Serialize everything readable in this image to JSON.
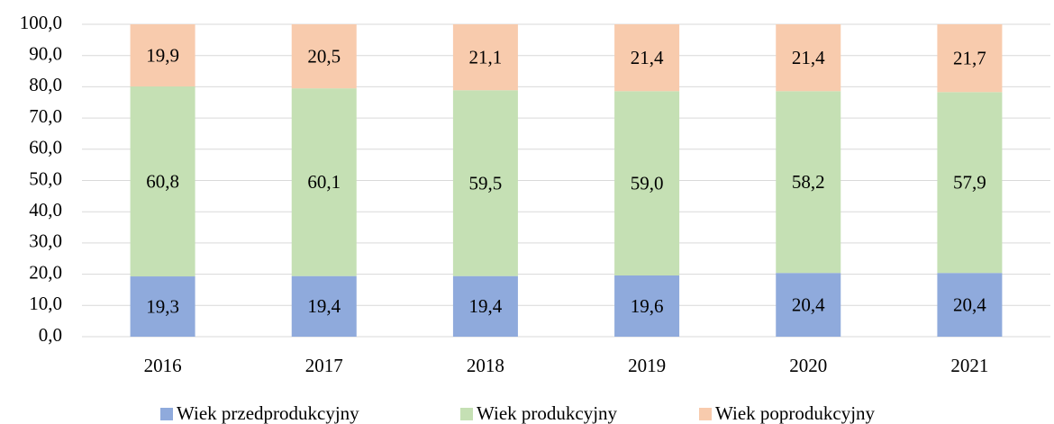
{
  "chart_data": {
    "type": "stacked_bar",
    "categories": [
      "2016",
      "2017",
      "2018",
      "2019",
      "2020",
      "2021"
    ],
    "series": [
      {
        "name": "Wiek przedprodukcyjny",
        "color": "#8faadc",
        "values": [
          19.3,
          19.4,
          19.4,
          19.6,
          20.4,
          20.4
        ],
        "value_labels": [
          "19,3",
          "19,4",
          "19,4",
          "19,6",
          "20,4",
          "20,4"
        ]
      },
      {
        "name": "Wiek produkcyjny",
        "color": "#c5e0b4",
        "values": [
          60.8,
          60.1,
          59.5,
          59.0,
          58.2,
          57.9
        ],
        "value_labels": [
          "60,8",
          "60,1",
          "59,5",
          "59,0",
          "58,2",
          "57,9"
        ]
      },
      {
        "name": "Wiek poprodukcyjny",
        "color": "#f8cbad",
        "values": [
          19.9,
          20.5,
          21.1,
          21.4,
          21.4,
          21.7
        ],
        "value_labels": [
          "19,9",
          "20,5",
          "21,1",
          "21,4",
          "21,4",
          "21,7"
        ]
      }
    ],
    "ylim": [
      0,
      100
    ],
    "yticks": [
      {
        "value": 0,
        "label": "0,0"
      },
      {
        "value": 10,
        "label": "10,0"
      },
      {
        "value": 20,
        "label": "20,0"
      },
      {
        "value": 30,
        "label": "30,0"
      },
      {
        "value": 40,
        "label": "40,0"
      },
      {
        "value": 50,
        "label": "50,0"
      },
      {
        "value": 60,
        "label": "60,0"
      },
      {
        "value": 70,
        "label": "70,0"
      },
      {
        "value": 80,
        "label": "80,0"
      },
      {
        "value": 90,
        "label": "90,0"
      },
      {
        "value": 100,
        "label": "100,0"
      }
    ],
    "grid": true,
    "legend": "bottom"
  }
}
